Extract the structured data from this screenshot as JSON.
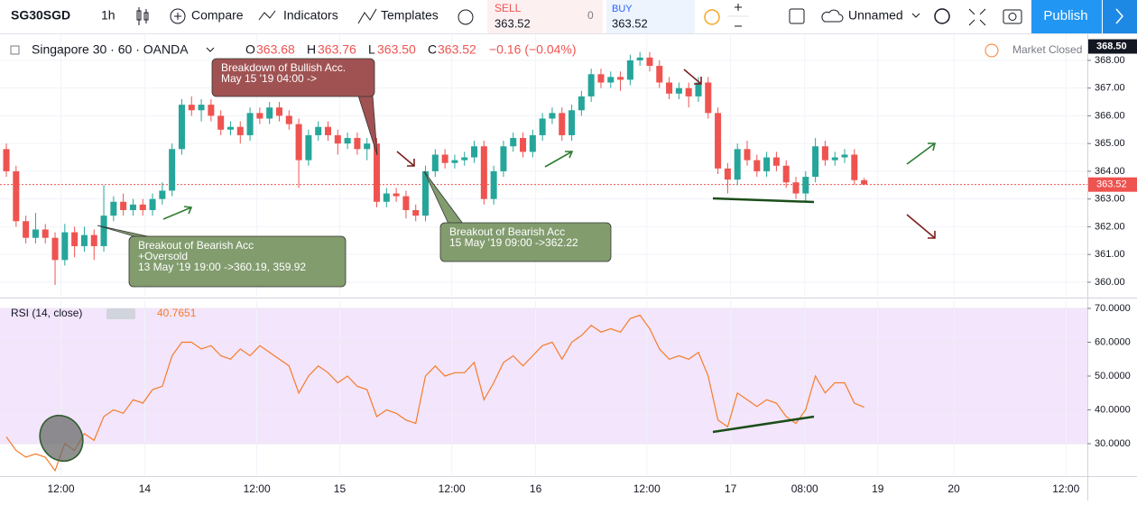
{
  "toolbar": {
    "symbol": "SG30SGD",
    "interval": "1h",
    "compare": "Compare",
    "indicators": "Indicators",
    "templates": "Templates",
    "sell_label": "SELL",
    "sell_price": "363.52",
    "spread": "0",
    "buy_label": "BUY",
    "buy_price": "363.52",
    "layout_name": "Unnamed",
    "publish": "Publish"
  },
  "legend": {
    "name": "Singapore 30 · 60 · OANDA",
    "o_label": "O",
    "open": "363.68",
    "h_label": "H",
    "high": "363.76",
    "l_label": "L",
    "low": "363.50",
    "c_label": "C",
    "close": "363.52",
    "change": "−0.16 (−0.04%)"
  },
  "market_status": "Market Closed",
  "chart_data": {
    "type": "candlestick",
    "open": [
      364.8,
      364.0,
      362.2,
      361.6,
      361.9,
      361.6,
      360.8,
      361.8,
      361.3,
      361.7,
      361.3,
      362.4,
      362.9,
      362.6,
      362.8,
      362.6,
      363.0,
      363.3,
      364.8,
      366.4,
      366.2,
      366.4,
      366.0,
      365.5,
      365.6,
      365.3,
      366.1,
      365.9,
      366.3,
      366.0,
      365.7,
      364.4,
      365.3,
      365.6,
      365.3,
      365.0,
      365.2,
      364.8,
      365.0,
      362.9,
      363.2,
      363.1,
      362.6,
      362.4,
      364.0,
      364.6,
      364.3,
      364.4,
      364.5,
      364.9,
      363.0,
      364.0,
      364.9,
      365.2,
      364.7,
      365.3,
      365.9,
      366.1,
      365.3,
      366.2,
      366.7,
      367.5,
      367.2,
      367.4,
      367.3,
      368.0,
      368.1,
      367.8,
      367.2,
      366.8,
      367.0,
      366.7,
      367.2,
      366.1,
      364.1,
      363.7,
      364.8,
      364.4,
      364.0,
      364.5,
      364.2,
      363.6,
      363.2,
      363.8,
      364.9,
      364.4,
      364.5,
      364.6,
      363.68
    ],
    "high": [
      365.0,
      364.2,
      362.4,
      362.5,
      362.1,
      361.8,
      362.1,
      362.0,
      362.0,
      361.9,
      363.5,
      363.1,
      363.2,
      363.0,
      363.0,
      363.2,
      363.6,
      365.0,
      366.6,
      366.7,
      366.6,
      366.6,
      366.2,
      365.8,
      365.8,
      366.3,
      366.3,
      366.5,
      366.5,
      366.2,
      365.9,
      365.5,
      365.8,
      365.8,
      365.5,
      365.4,
      365.4,
      365.2,
      365.2,
      363.4,
      363.4,
      363.3,
      362.8,
      364.2,
      364.8,
      364.8,
      364.6,
      364.7,
      365.1,
      365.1,
      364.2,
      365.1,
      365.4,
      365.4,
      365.5,
      366.1,
      366.3,
      366.3,
      366.4,
      366.9,
      367.7,
      367.7,
      367.6,
      367.6,
      368.2,
      368.3,
      368.3,
      368.0,
      367.4,
      367.2,
      367.2,
      367.4,
      367.4,
      366.3,
      364.3,
      365.0,
      365.1,
      364.6,
      364.7,
      364.7,
      364.4,
      363.8,
      364.0,
      365.2,
      365.1,
      364.7,
      364.8,
      364.8,
      363.76
    ],
    "low": [
      363.8,
      362.0,
      361.4,
      361.4,
      361.4,
      359.9,
      360.6,
      360.9,
      361.1,
      360.8,
      361.1,
      362.2,
      362.4,
      362.4,
      362.4,
      362.4,
      362.8,
      363.1,
      364.6,
      366.0,
      365.8,
      365.8,
      365.3,
      365.3,
      365.0,
      365.1,
      365.7,
      365.7,
      365.8,
      365.5,
      363.4,
      364.2,
      365.1,
      365.1,
      364.6,
      364.8,
      364.6,
      364.4,
      362.7,
      362.7,
      362.9,
      362.3,
      362.2,
      362.2,
      363.8,
      364.1,
      364.1,
      364.2,
      364.3,
      362.8,
      362.8,
      363.8,
      364.7,
      364.5,
      364.5,
      365.1,
      365.7,
      365.1,
      365.1,
      366.0,
      366.5,
      367.0,
      367.0,
      366.9,
      367.1,
      367.8,
      367.6,
      367.0,
      366.6,
      366.6,
      366.3,
      366.5,
      365.9,
      363.9,
      363.2,
      363.5,
      364.2,
      363.8,
      363.8,
      364.0,
      363.4,
      363.0,
      362.9,
      363.6,
      364.2,
      364.2,
      364.3,
      363.5,
      363.5
    ],
    "close": [
      364.0,
      362.2,
      361.6,
      361.9,
      361.6,
      360.8,
      361.8,
      361.3,
      361.7,
      361.3,
      362.4,
      362.9,
      362.6,
      362.8,
      362.6,
      363.0,
      363.3,
      364.8,
      366.4,
      366.2,
      366.4,
      366.0,
      365.5,
      365.6,
      365.3,
      366.1,
      365.9,
      366.3,
      366.0,
      365.7,
      364.4,
      365.3,
      365.6,
      365.3,
      365.0,
      365.2,
      364.8,
      365.0,
      362.9,
      363.2,
      363.1,
      362.6,
      362.4,
      364.0,
      364.6,
      364.3,
      364.4,
      364.5,
      364.9,
      363.0,
      364.0,
      364.9,
      365.2,
      364.7,
      365.3,
      365.9,
      366.1,
      365.3,
      366.2,
      366.7,
      367.5,
      367.2,
      367.4,
      367.3,
      368.0,
      368.1,
      367.8,
      367.2,
      366.8,
      367.0,
      366.7,
      367.2,
      366.1,
      364.1,
      363.7,
      364.8,
      364.4,
      364.0,
      364.5,
      364.2,
      363.6,
      363.2,
      363.8,
      364.9,
      364.4,
      364.5,
      364.6,
      363.68,
      363.52
    ],
    "up_color": "#26a69a",
    "down_color": "#ef5350",
    "xlim": [
      -0.65,
      110.9
    ],
    "xticks": [
      {
        "value": 5.6,
        "label": "12:00"
      },
      {
        "value": 14.2,
        "label": "14"
      },
      {
        "value": 25.7,
        "label": "12:00"
      },
      {
        "value": 34.2,
        "label": "15"
      },
      {
        "value": 45.7,
        "label": "12:00"
      },
      {
        "value": 54.3,
        "label": "16"
      },
      {
        "value": 65.7,
        "label": "12:00"
      },
      {
        "value": 74.3,
        "label": "17"
      },
      {
        "value": 81.9,
        "label": "08:00"
      },
      {
        "value": 89.4,
        "label": "19"
      },
      {
        "value": 97.2,
        "label": "20"
      },
      {
        "value": 108.7,
        "label": "12:00"
      }
    ],
    "ylim": [
      359.51,
      368.94
    ],
    "yticks": [
      {
        "value": 360,
        "label": "360.00"
      },
      {
        "value": 361,
        "label": "361.00"
      },
      {
        "value": 362,
        "label": "362.00"
      },
      {
        "value": 363,
        "label": "363.00"
      },
      {
        "value": 364,
        "label": "364.00"
      },
      {
        "value": 365,
        "label": "365.00"
      },
      {
        "value": 366,
        "label": "366.00"
      },
      {
        "value": 367,
        "label": "367.00"
      },
      {
        "value": 368,
        "label": "368.00"
      }
    ],
    "last_price": 363.52,
    "high_marker": {
      "value": 368.5,
      "label": "368.50"
    },
    "grid": true,
    "annotations": [
      {
        "lines": [
          "Breakdown of Bullish  Acc.",
          "May 15 '19 04:00 ->"
        ],
        "color": "#a05252"
      },
      {
        "lines": [
          "Breakout of Bearish Acc",
          "+Oversold",
          "13 May '19 19:00 ->360.19, 359.92"
        ],
        "color": "#829c6e"
      },
      {
        "lines": [
          "Breakout of Bearish Acc",
          "15 May '19 09:00 ->362.22"
        ],
        "color": "#829c6e"
      }
    ],
    "rsi": {
      "title": "RSI (14, close)",
      "value": "40.7651",
      "color": "#f57c2a",
      "values": [
        32,
        28,
        26,
        27,
        26,
        22,
        30,
        28,
        33,
        31,
        38,
        40,
        39,
        43,
        42,
        46,
        47,
        56,
        60,
        60,
        58,
        59,
        56,
        55,
        58,
        56,
        59,
        57,
        55,
        53,
        45,
        50,
        53,
        51,
        48,
        50,
        47,
        46,
        38,
        40,
        39,
        37,
        36,
        50,
        53,
        50,
        51,
        51,
        54,
        43,
        48,
        54,
        56,
        53,
        56,
        59,
        60,
        55,
        60,
        62,
        65,
        63,
        64,
        63,
        67,
        68,
        64,
        58,
        55,
        56,
        55,
        57,
        50,
        37,
        35,
        45,
        43,
        41,
        43,
        42,
        38,
        36,
        40,
        50,
        45,
        48,
        48,
        42,
        40.7651
      ],
      "ylim": [
        20.67,
        72.4
      ],
      "yticks": [
        {
          "value": 30,
          "label": "30.0000"
        },
        {
          "value": 40,
          "label": "40.0000"
        },
        {
          "value": 50,
          "label": "50.0000"
        },
        {
          "value": 60,
          "label": "60.0000"
        },
        {
          "value": 70,
          "label": "70.0000"
        }
      ],
      "band": [
        30,
        70
      ]
    }
  }
}
